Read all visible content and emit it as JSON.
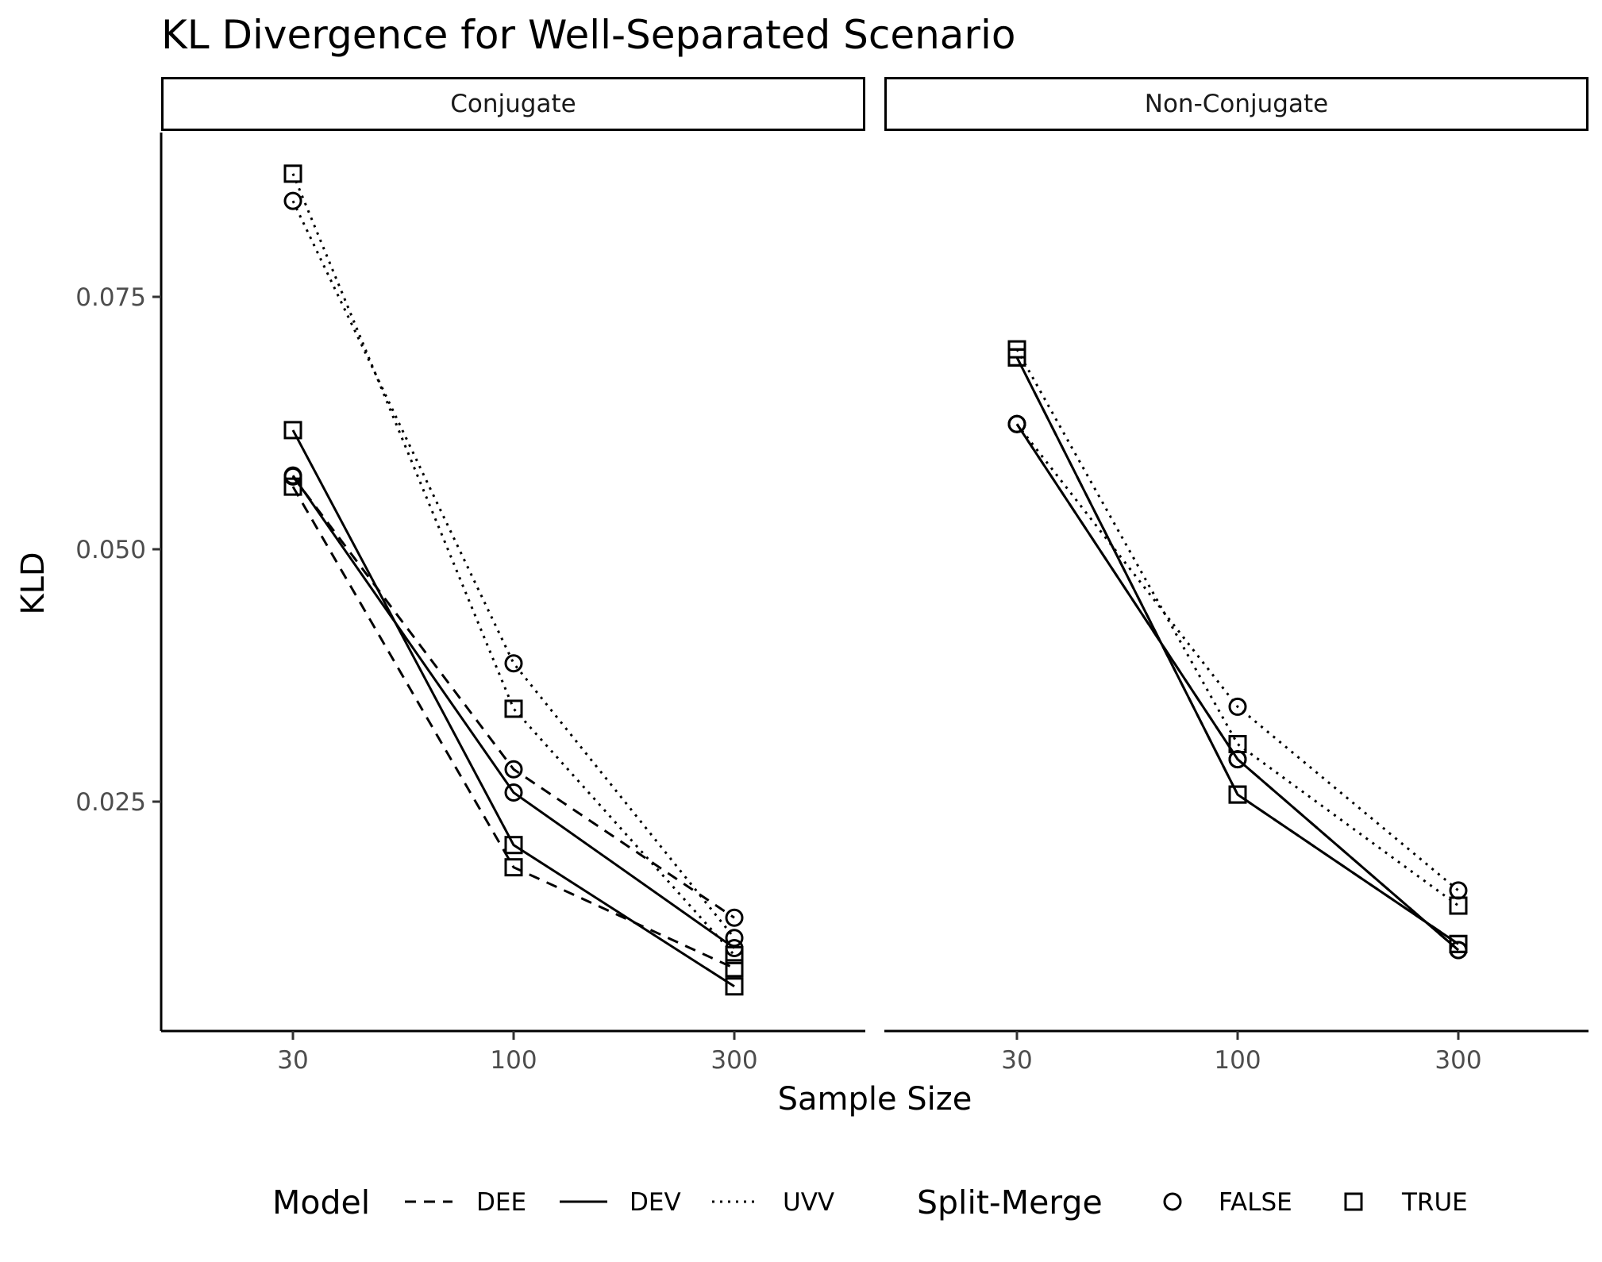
{
  "chart_data": {
    "type": "line",
    "title": "KL Divergence for Well-Separated Scenario",
    "xlabel": "Sample Size",
    "ylabel": "KLD",
    "x_categories": [
      "30",
      "100",
      "300"
    ],
    "y_ticks": [
      0.025,
      0.05,
      0.075
    ],
    "y_tick_labels": [
      "0.025",
      "0.050",
      "0.075"
    ],
    "ylim": [
      0.0045,
      0.0935
    ],
    "grid": false,
    "panels": [
      {
        "label": "Conjugate",
        "series": [
          {
            "model": "DEE",
            "split_merge": "FALSE",
            "values": [
              0.0572,
              0.0282,
              0.0135
            ]
          },
          {
            "model": "DEE",
            "split_merge": "TRUE",
            "values": [
              0.0562,
              0.0185,
              0.0085
            ]
          },
          {
            "model": "DEV",
            "split_merge": "FALSE",
            "values": [
              0.0573,
              0.0259,
              0.0105
            ]
          },
          {
            "model": "DEV",
            "split_merge": "TRUE",
            "values": [
              0.0618,
              0.0207,
              0.0067
            ]
          },
          {
            "model": "UVV",
            "split_merge": "FALSE",
            "values": [
              0.0845,
              0.0387,
              0.0115
            ]
          },
          {
            "model": "UVV",
            "split_merge": "TRUE",
            "values": [
              0.0872,
              0.0342,
              0.0098
            ]
          }
        ]
      },
      {
        "label": "Non-Conjugate",
        "series": [
          {
            "model": "DEE",
            "split_merge": "FALSE",
            "values": [
              0.0624,
              0.0292,
              0.0103
            ]
          },
          {
            "model": "DEE",
            "split_merge": "TRUE",
            "values": [
              0.069,
              0.0257,
              0.0109
            ]
          },
          {
            "model": "DEV",
            "split_merge": "FALSE",
            "values": [
              0.0624,
              0.0292,
              0.0103
            ]
          },
          {
            "model": "DEV",
            "split_merge": "TRUE",
            "values": [
              0.069,
              0.0257,
              0.0109
            ]
          },
          {
            "model": "UVV",
            "split_merge": "FALSE",
            "values": [
              0.0624,
              0.0344,
              0.0162
            ]
          },
          {
            "model": "UVV",
            "split_merge": "TRUE",
            "values": [
              0.0698,
              0.0307,
              0.0147
            ]
          }
        ]
      }
    ],
    "legend": {
      "position": "bottom",
      "model_title": "Model",
      "model_entries": [
        {
          "label": "DEE",
          "linetype": "dashed"
        },
        {
          "label": "DEV",
          "linetype": "solid"
        },
        {
          "label": "UVV",
          "linetype": "dotted"
        }
      ],
      "shape_title": "Split-Merge",
      "shape_entries": [
        {
          "label": "FALSE",
          "shape": "circle"
        },
        {
          "label": "TRUE",
          "shape": "square"
        }
      ]
    },
    "colors": {
      "line": "#000000",
      "strip_border": "#000000",
      "tick_label": "#4d4d4d"
    }
  }
}
